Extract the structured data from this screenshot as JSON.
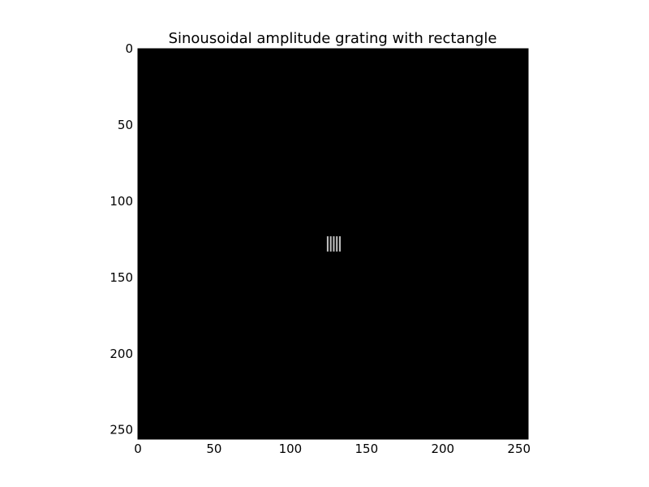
{
  "chart_data": {
    "type": "heatmap",
    "title": "Sinousoidal amplitude grating with rectangle",
    "xlabel": "",
    "ylabel": "",
    "colormap": "gray",
    "background_color": "#000000",
    "image_size": [
      256,
      256
    ],
    "xlim": [
      0,
      256
    ],
    "ylim": [
      256,
      0
    ],
    "xticks": [
      0,
      50,
      100,
      150,
      200,
      250
    ],
    "yticks": [
      0,
      50,
      100,
      150,
      200,
      250
    ],
    "xtick_labels": [
      "0",
      "50",
      "100",
      "150",
      "200",
      "250"
    ],
    "ytick_labels": [
      "0",
      "50",
      "100",
      "150",
      "200",
      "250"
    ],
    "grid": false,
    "rectangle": {
      "x_range": [
        124,
        134
      ],
      "y_range": [
        123,
        133
      ],
      "bright_stripe_x": [
        124.5,
        126.5,
        128.5,
        130.5,
        132.5
      ],
      "stripe_color": "#bdbdbd"
    }
  }
}
